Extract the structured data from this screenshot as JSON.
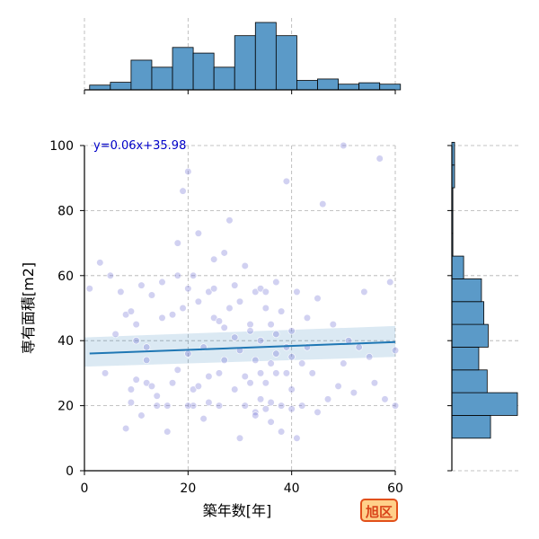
{
  "chart_data": {
    "type": "scatter",
    "xlabel": "築年数[年]",
    "ylabel": "専有面積[m2]",
    "xlim": [
      0,
      60
    ],
    "ylim": [
      0,
      100
    ],
    "xticks": [
      "0",
      "20",
      "40",
      "60"
    ],
    "yticks": [
      "0",
      "20",
      "40",
      "60",
      "80",
      "100"
    ],
    "grid": true,
    "point_color": "#7b7bd6",
    "regression": {
      "equation_label": "y=0.06x+35.98",
      "slope": 0.06,
      "intercept": 35.98,
      "ci_x": [
        0,
        60
      ],
      "ci_lower": [
        32.0,
        35.0
      ],
      "ci_upper": [
        41.0,
        44.5
      ],
      "line_color": "#1f77b4"
    },
    "points": [
      [
        1,
        56
      ],
      [
        3,
        64
      ],
      [
        4,
        30
      ],
      [
        5,
        60
      ],
      [
        6,
        42
      ],
      [
        8,
        48
      ],
      [
        8,
        13
      ],
      [
        9,
        49
      ],
      [
        9,
        21
      ],
      [
        9,
        25
      ],
      [
        10,
        45
      ],
      [
        10,
        40
      ],
      [
        11,
        57
      ],
      [
        11,
        17
      ],
      [
        12,
        34
      ],
      [
        12,
        27
      ],
      [
        13,
        26
      ],
      [
        13,
        54
      ],
      [
        14,
        23
      ],
      [
        15,
        58
      ],
      [
        15,
        47
      ],
      [
        16,
        20
      ],
      [
        17,
        48
      ],
      [
        17,
        27
      ],
      [
        18,
        70
      ],
      [
        18,
        31
      ],
      [
        19,
        50
      ],
      [
        19,
        86
      ],
      [
        20,
        92
      ],
      [
        20,
        56
      ],
      [
        20,
        36
      ],
      [
        21,
        20
      ],
      [
        21,
        25
      ],
      [
        22,
        52
      ],
      [
        22,
        73
      ],
      [
        23,
        16
      ],
      [
        23,
        38
      ],
      [
        24,
        55
      ],
      [
        24,
        21
      ],
      [
        25,
        65
      ],
      [
        25,
        47
      ],
      [
        26,
        30
      ],
      [
        26,
        20
      ],
      [
        27,
        67
      ],
      [
        27,
        34
      ],
      [
        28,
        50
      ],
      [
        28,
        77
      ],
      [
        29,
        57
      ],
      [
        29,
        25
      ],
      [
        30,
        37
      ],
      [
        30,
        52
      ],
      [
        31,
        20
      ],
      [
        31,
        63
      ],
      [
        32,
        45
      ],
      [
        32,
        27
      ],
      [
        33,
        55
      ],
      [
        33,
        18
      ],
      [
        34,
        56
      ],
      [
        34,
        40
      ],
      [
        34,
        22
      ],
      [
        35,
        50
      ],
      [
        35,
        19
      ],
      [
        36,
        45
      ],
      [
        36,
        15
      ],
      [
        37,
        30
      ],
      [
        37,
        58
      ],
      [
        38,
        49
      ],
      [
        38,
        20
      ],
      [
        39,
        89
      ],
      [
        39,
        38
      ],
      [
        40,
        19
      ],
      [
        40,
        25
      ],
      [
        40,
        43
      ],
      [
        41,
        55
      ],
      [
        41,
        10
      ],
      [
        42,
        33
      ],
      [
        42,
        20
      ],
      [
        43,
        38
      ],
      [
        44,
        30
      ],
      [
        45,
        53
      ],
      [
        46,
        82
      ],
      [
        47,
        22
      ],
      [
        48,
        45
      ],
      [
        49,
        26
      ],
      [
        50,
        100
      ],
      [
        50,
        33
      ],
      [
        52,
        24
      ],
      [
        54,
        55
      ],
      [
        55,
        35
      ],
      [
        57,
        96
      ],
      [
        58,
        22
      ],
      [
        59,
        58
      ],
      [
        60,
        20
      ],
      [
        60,
        37
      ],
      [
        16,
        12
      ],
      [
        10,
        28
      ],
      [
        14,
        20
      ],
      [
        43,
        47
      ],
      [
        32,
        43
      ],
      [
        24,
        29
      ],
      [
        30,
        10
      ],
      [
        36,
        33
      ],
      [
        26,
        46
      ],
      [
        12,
        38
      ],
      [
        21,
        60
      ],
      [
        33,
        17
      ],
      [
        38,
        12
      ],
      [
        29,
        41
      ],
      [
        45,
        18
      ],
      [
        51,
        40
      ],
      [
        34,
        30
      ],
      [
        33,
        34
      ],
      [
        37,
        36
      ],
      [
        35,
        27
      ],
      [
        31,
        29
      ],
      [
        39,
        30
      ],
      [
        36,
        21
      ],
      [
        40,
        35
      ],
      [
        35,
        55
      ],
      [
        37,
        42
      ],
      [
        20,
        20
      ],
      [
        22,
        26
      ],
      [
        25,
        56
      ],
      [
        27,
        44
      ],
      [
        18,
        60
      ],
      [
        7,
        55
      ],
      [
        53,
        38
      ],
      [
        56,
        27
      ]
    ],
    "top_hist": {
      "bin_edges": [
        1,
        5,
        9,
        13,
        17,
        21,
        25,
        29,
        33,
        37,
        41,
        45,
        49,
        53,
        57,
        61
      ],
      "counts": [
        1,
        1.6,
        6.3,
        4.8,
        9.0,
        7.8,
        4.8,
        11.5,
        14.3,
        11.5,
        2,
        2.3,
        1.2,
        1.5,
        1.2
      ]
    },
    "right_hist": {
      "bin_edges": [
        10,
        17,
        24,
        31,
        38,
        45,
        52,
        59,
        66,
        73,
        80,
        87,
        94,
        101
      ],
      "counts": [
        11.5,
        19.5,
        10.5,
        8,
        10.8,
        9.5,
        8.8,
        3.5,
        0.3,
        0.3,
        0.3,
        0.8,
        0.8
      ]
    },
    "hist_color": "#5b9ac8"
  },
  "badge_label": "旭区"
}
